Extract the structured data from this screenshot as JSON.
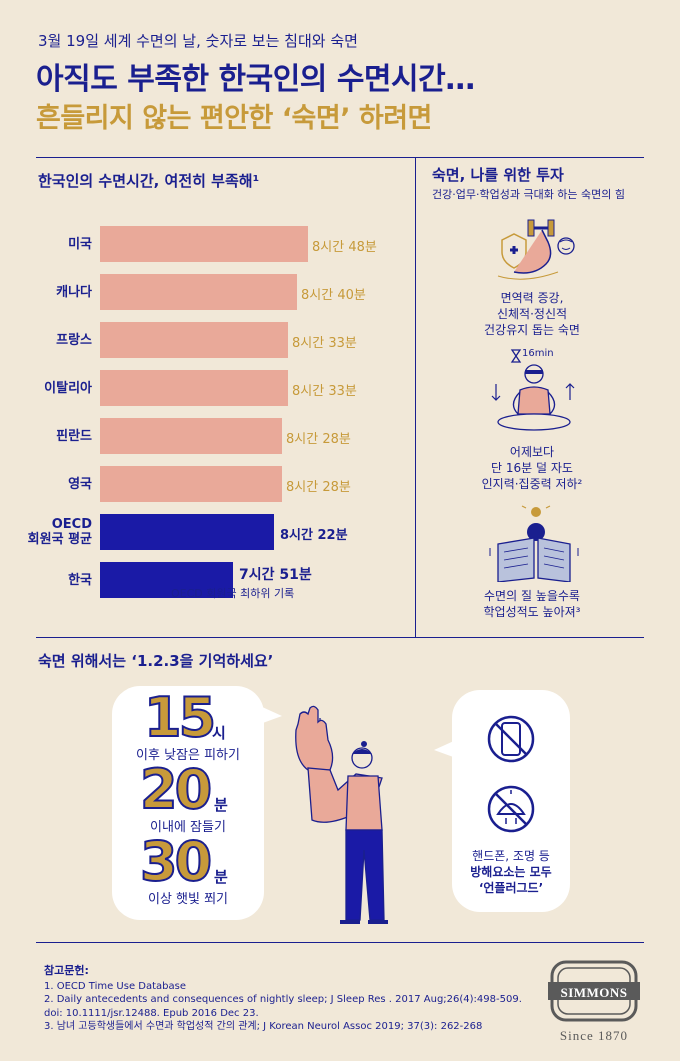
{
  "header": {
    "kicker": "3월 19일 세계 수면의 날, 숫자로 보는 침대와 숙면",
    "title": "아직도 부족한 한국인의 수면시간…",
    "subtitle": "흔들리지 않는 편안한 ‘숙면’ 하려면"
  },
  "sleep_chart": {
    "title": "한국인의 수면시간, 여전히 부족해¹",
    "note_korea": "OECD 회원국 최하위 기록"
  },
  "chart_data": {
    "type": "bar",
    "categories": [
      "미국",
      "캐나다",
      "프랑스",
      "이탈리아",
      "핀란드",
      "영국",
      "OECD 회원국 평균",
      "한국"
    ],
    "values_minutes": [
      528,
      520,
      513,
      513,
      508,
      508,
      502,
      471
    ],
    "value_labels": [
      "8시간 48분",
      "8시간 40분",
      "8시간 33분",
      "8시간 33분",
      "8시간 28분",
      "8시간 28분",
      "8시간 22분",
      "7시간 51분"
    ],
    "highlight": [
      "OECD 회원국 평균",
      "한국"
    ],
    "colors": {
      "normal": "#e9a999",
      "highlight": "#1a1aa6"
    }
  },
  "investment": {
    "title": "숙면, 나를 위한 투자",
    "subtitle": "건강·업무·학업성과 극대화 하는 숙면의 힘",
    "items": [
      {
        "icon": "muscle-dumbbell-icon",
        "lines": [
          "면역력 증강,",
          "신체적·정신적",
          "건강유지 돕는 숙면"
        ]
      },
      {
        "icon": "meditation-timer-icon",
        "timer": "16min",
        "lines": [
          "어제보다",
          "단 16분 덜 자도",
          "인지력·집중력 저하²"
        ]
      },
      {
        "icon": "reading-book-icon",
        "lines": [
          "수면의 질 높을수록",
          "학업성적도 높아져³"
        ]
      }
    ]
  },
  "rule123": {
    "title": "숙면 위해서는 ‘1.2.3을 기억하세요’",
    "tips": [
      {
        "number": "15",
        "unit": "시",
        "text": "이후 낮잠은 피하기"
      },
      {
        "number": "20",
        "unit": "분",
        "text": "이내에 잠들기"
      },
      {
        "number": "30",
        "unit": "분",
        "text": "이상 햇빛 쬐기"
      }
    ],
    "unplug": {
      "lines": [
        "핸드폰, 조명 등",
        "방해요소는 모두",
        "‘언플러그드’"
      ]
    }
  },
  "references": {
    "title": "참고문헌:",
    "items": [
      "1. OECD Time Use Database",
      "2. Daily antecedents and consequences of nightly sleep; J Sleep Res . 2017 Aug;26(4):498-509. doi: 10.1111/jsr.12488. Epub 2016 Dec  23.",
      "3. 남녀 고등학생들에서 수면과 학업성적 간의 관계; J Korean Neurol Assoc 2019; 37(3): 262-268"
    ]
  },
  "brand": {
    "name": "SIMMONS",
    "since": "Since 1870",
    "color": "#5a5a5a"
  },
  "colors": {
    "navy": "#1a1f8f",
    "gold": "#c79a3a",
    "beige": "#f1e8d8",
    "salmon": "#e9a999"
  }
}
